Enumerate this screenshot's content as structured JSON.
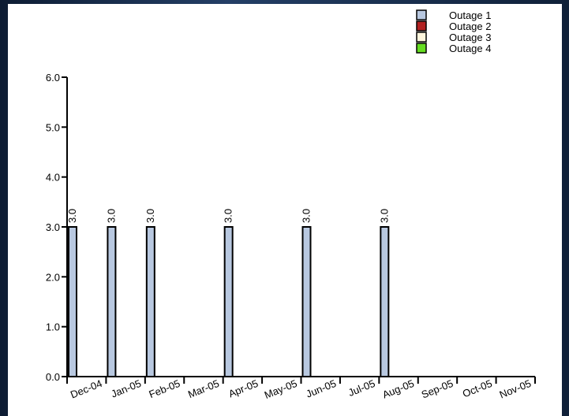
{
  "chart_data": {
    "type": "bar",
    "categories": [
      "Dec-04",
      "Jan-05",
      "Feb-05",
      "Mar-05",
      "Apr-05",
      "May-05",
      "Jun-05",
      "Jul-05",
      "Aug-05",
      "Sep-05",
      "Oct-05",
      "Nov-05"
    ],
    "series": [
      {
        "name": "Outage 1",
        "color": "#b8c8e0",
        "values": [
          3.0,
          3.0,
          3.0,
          null,
          3.0,
          null,
          3.0,
          null,
          3.0,
          null,
          null,
          null
        ]
      },
      {
        "name": "Outage 2",
        "color": "#b22222",
        "values": [
          null,
          null,
          null,
          null,
          null,
          null,
          null,
          null,
          null,
          null,
          null,
          null
        ]
      },
      {
        "name": "Outage 3",
        "color": "#fdf5dc",
        "values": [
          null,
          null,
          null,
          null,
          null,
          null,
          null,
          null,
          null,
          null,
          null,
          null
        ]
      },
      {
        "name": "Outage 4",
        "color": "#66dd22",
        "values": [
          null,
          null,
          null,
          null,
          null,
          null,
          null,
          null,
          null,
          null,
          null,
          null
        ]
      }
    ],
    "data_labels": [
      "3.0",
      "3.0",
      "3.0",
      "3.0",
      "3.0",
      "3.0"
    ],
    "yticks": [
      "0.0",
      "1.0",
      "2.0",
      "3.0",
      "4.0",
      "5.0",
      "6.0"
    ],
    "ylim": [
      0,
      6
    ],
    "xlabel": "",
    "ylabel": "",
    "title": "",
    "grid": false,
    "legend_position": "top-right"
  }
}
